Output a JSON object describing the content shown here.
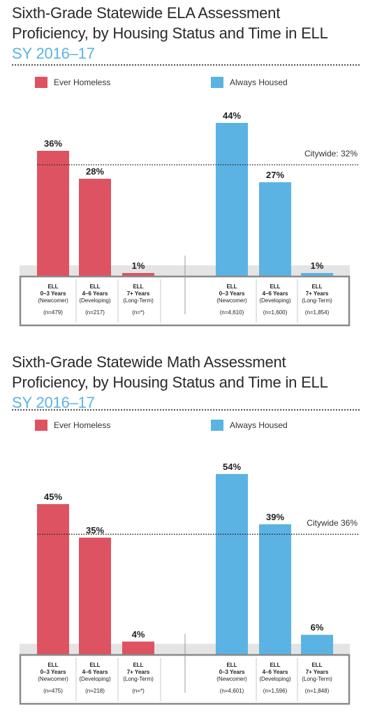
{
  "colors": {
    "homeless": "#de5361",
    "housed": "#5bb3e3",
    "subtitle": "#5ab4e2"
  },
  "chart_data": [
    {
      "type": "bar",
      "title_line1": "Sixth-Grade Statewide ELA Assessment",
      "title_line2": "Proficiency, by Housing Status and Time in ELL",
      "subtitle": "SY 2016–17",
      "ylim": [
        0,
        50
      ],
      "reference": {
        "label": "Citywide: 32%",
        "value": 32
      },
      "series": [
        {
          "name": "Ever Homeless",
          "color": "#de5361",
          "values": [
            36,
            28,
            1
          ],
          "labels": [
            "36%",
            "28%",
            "1%"
          ],
          "categories": [
            {
              "line1": "ELL",
              "line2": "0–3 Years",
              "line3": "(Newcomer)",
              "n": "(n=479)"
            },
            {
              "line1": "ELL",
              "line2": "4–6 Years",
              "line3": "(Developing)",
              "n": "(n=217)"
            },
            {
              "line1": "ELL",
              "line2": "7+ Years",
              "line3": "(Long-Term)",
              "n": "(n=*)"
            }
          ]
        },
        {
          "name": "Always Housed",
          "color": "#5bb3e3",
          "values": [
            44,
            27,
            1
          ],
          "labels": [
            "44%",
            "27%",
            "1%"
          ],
          "categories": [
            {
              "line1": "ELL",
              "line2": "0–3 Years",
              "line3": "(Newcomer)",
              "n": "(n=4,610)"
            },
            {
              "line1": "ELL",
              "line2": "4–6 Years",
              "line3": "(Developing)",
              "n": "(n=1,600)"
            },
            {
              "line1": "ELL",
              "line2": "7+ Years",
              "line3": "(Long-Term)",
              "n": "(n=1,854)"
            }
          ]
        }
      ]
    },
    {
      "type": "bar",
      "title_line1": "Sixth-Grade Statewide Math Assessment",
      "title_line2": "Proficiency, by Housing Status and Time in ELL",
      "subtitle": "SY 2016–17",
      "ylim": [
        0,
        60
      ],
      "reference": {
        "label": "Citywide 36%",
        "value": 36
      },
      "series": [
        {
          "name": "Ever Homeless",
          "color": "#de5361",
          "values": [
            45,
            35,
            4
          ],
          "labels": [
            "45%",
            "35%",
            "4%"
          ],
          "categories": [
            {
              "line1": "ELL",
              "line2": "0–3 Years",
              "line3": "(Newcomer)",
              "n": "(n=475)"
            },
            {
              "line1": "ELL",
              "line2": "4–6 Years",
              "line3": "(Developing)",
              "n": "(n=218)"
            },
            {
              "line1": "ELL",
              "line2": "7+ Years",
              "line3": "(Long-Term)",
              "n": "(n=*)"
            }
          ]
        },
        {
          "name": "Always Housed",
          "color": "#5bb3e3",
          "values": [
            54,
            39,
            6
          ],
          "labels": [
            "54%",
            "39%",
            "6%"
          ],
          "categories": [
            {
              "line1": "ELL",
              "line2": "0–3 Years",
              "line3": "(Newcomer)",
              "n": "(n=4,601)"
            },
            {
              "line1": "ELL",
              "line2": "4–6 Years",
              "line3": "(Developing)",
              "n": "(n=1,596)"
            },
            {
              "line1": "ELL",
              "line2": "7+ Years",
              "line3": "(Long-Term)",
              "n": "(n=1,848)"
            }
          ]
        }
      ]
    }
  ]
}
